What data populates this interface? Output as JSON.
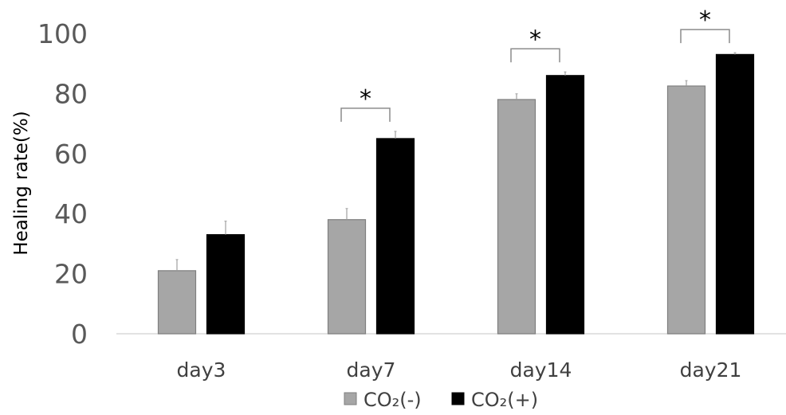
{
  "chart_data": {
    "type": "bar",
    "title": "",
    "xlabel": "",
    "ylabel": "Healing rate(%)",
    "ylim": [
      0,
      100
    ],
    "yticks": [
      0,
      20,
      40,
      60,
      80,
      100
    ],
    "grid": false,
    "legend_position": "bottom",
    "categories": [
      "day3",
      "day7",
      "day14",
      "day21"
    ],
    "series": [
      {
        "name": "CO₂(-)",
        "color": "#a6a6a6",
        "values": [
          21,
          38,
          78,
          82.5
        ],
        "errors": [
          3.7,
          3.7,
          1.9,
          1.8
        ]
      },
      {
        "name": "CO₂(+)",
        "color": "#000000",
        "values": [
          33,
          65,
          86,
          93
        ],
        "errors": [
          4.5,
          2.4,
          1.2,
          0.6
        ]
      }
    ],
    "significance": [
      {
        "category": "day7",
        "label": "*"
      },
      {
        "category": "day14",
        "label": "*"
      },
      {
        "category": "day21",
        "label": "*"
      }
    ]
  }
}
